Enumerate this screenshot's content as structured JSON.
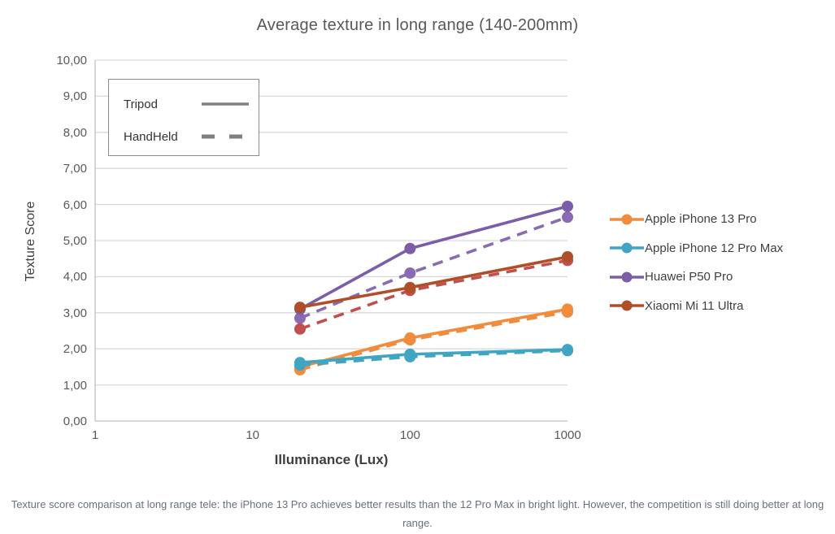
{
  "title": "Average texture in long range (140-200mm)",
  "caption": "Texture score comparison at long range tele: the iPhone 13 Pro achieves better results than the 12 Pro Max in bright light. However, the competition is still doing better at long range.",
  "chart_data": {
    "type": "line",
    "title": "Average texture in long range (140-200mm)",
    "x_axis": {
      "label": "Illuminance (Lux)",
      "scale": "log",
      "range": [
        1,
        1000
      ],
      "tick_values": [
        1,
        10,
        100,
        1000
      ],
      "tick_labels": [
        "1",
        "10",
        "100",
        "1000"
      ]
    },
    "y_axis": {
      "label": "Texture Score",
      "range": [
        0,
        10
      ],
      "step": 1,
      "tick_labels": [
        "10,00",
        "9,00",
        "8,00",
        "7,00",
        "6,00",
        "5,00",
        "4,00",
        "3,00",
        "2,00",
        "1,00",
        "0,00"
      ]
    },
    "grid": "horizontal",
    "x": [
      20,
      100,
      1000
    ],
    "series": [
      {
        "name": "Apple iPhone 13 Pro",
        "condition": "HandHeld",
        "style": "dashed",
        "color": "#F18C3D",
        "values": [
          1.42,
          2.25,
          3.02
        ]
      },
      {
        "name": "Apple iPhone 13 Pro",
        "condition": "Tripod",
        "style": "solid",
        "color": "#F18C3D",
        "values": [
          1.5,
          2.3,
          3.1
        ]
      },
      {
        "name": "Apple iPhone 12 Pro Max",
        "condition": "HandHeld",
        "style": "dashed",
        "color": "#3FA5C2",
        "values": [
          1.55,
          1.78,
          1.95
        ]
      },
      {
        "name": "Apple iPhone 12 Pro Max",
        "condition": "Tripod",
        "style": "solid",
        "color": "#3FA5C2",
        "values": [
          1.62,
          1.85,
          1.98
        ]
      },
      {
        "name": "Huawei P50 Pro",
        "condition": "HandHeld",
        "style": "dashed",
        "color": "#8A6BB3",
        "values": [
          2.85,
          4.1,
          5.65
        ]
      },
      {
        "name": "Huawei P50 Pro",
        "condition": "Tripod",
        "style": "solid",
        "color": "#7B5EA7",
        "values": [
          3.1,
          4.78,
          5.95
        ]
      },
      {
        "name": "Xiaomi Mi 11 Ultra",
        "condition": "HandHeld",
        "style": "dashed",
        "color": "#C0504D",
        "values": [
          2.55,
          3.62,
          4.45
        ]
      },
      {
        "name": "Xiaomi Mi 11 Ultra",
        "condition": "Tripod",
        "style": "solid",
        "color": "#B04E28",
        "values": [
          3.15,
          3.7,
          4.55
        ]
      }
    ],
    "style_legend": [
      {
        "label": "Tripod",
        "style": "solid"
      },
      {
        "label": "HandHeld",
        "style": "dashed"
      }
    ],
    "series_legend": [
      {
        "label": "Apple iPhone 13 Pro",
        "color": "#F18C3D"
      },
      {
        "label": "Apple iPhone 12 Pro Max",
        "color": "#3FA5C2"
      },
      {
        "label": "Huawei P50 Pro",
        "color": "#7B5EA7"
      },
      {
        "label": "Xiaomi Mi 11 Ultra",
        "color": "#B04E28"
      }
    ],
    "legend_position": "right",
    "colors": {
      "grid": "#D9D9D9",
      "axis": "#BFBFBF",
      "neutral_legend_line": "#7f7f7f"
    }
  }
}
